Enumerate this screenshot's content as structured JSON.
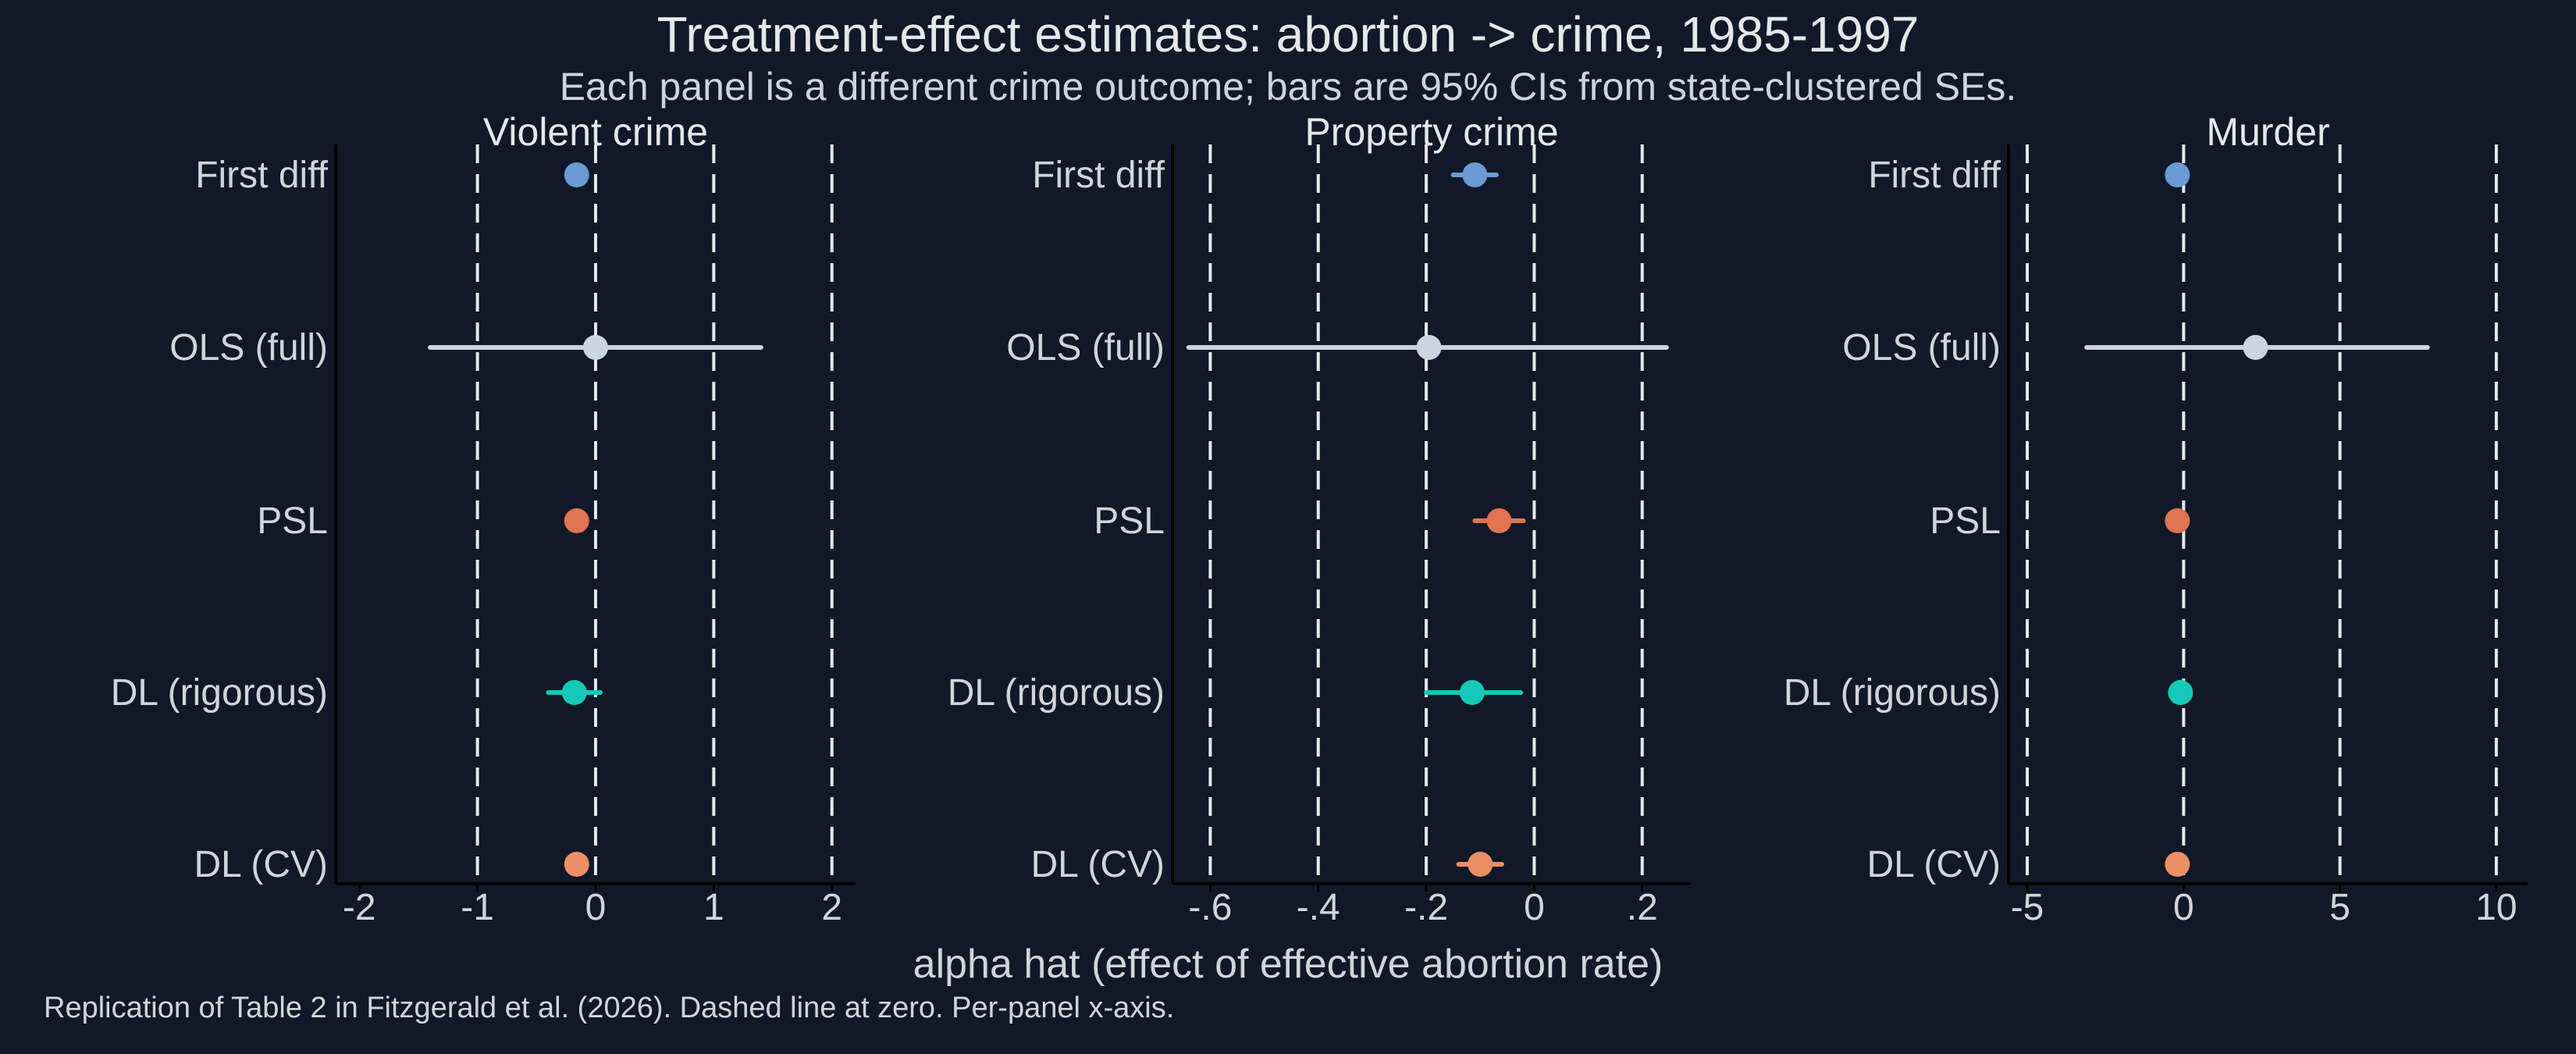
{
  "figure": {
    "title": "Treatment-effect estimates: abortion -> crime, 1985-1997",
    "subtitle": "Each panel is a different crime outcome; bars are 95% CIs from state-clustered SEs.",
    "xlabel": "alpha hat (effect of effective abortion rate)",
    "caption": "Replication of Table 2 in Fitzgerald et al. (2026). Dashed line at zero. Per-panel x-axis.",
    "colors": {
      "background": "#111827",
      "text": "#e5e7eb",
      "axis": "#000000",
      "dashed": "#e5e7eb",
      "methods": [
        "#6a9bd4",
        "#cbd5e1",
        "#e07350",
        "#14c9b7",
        "#eb9065"
      ]
    }
  },
  "chart_data": [
    {
      "type": "scatter",
      "title": "Violent crime",
      "categories": [
        "First diff",
        "OLS (full)",
        "PSL",
        "DL (rigorous)",
        "DL (CV)"
      ],
      "xlim": [
        -2.2,
        2.2
      ],
      "ticks": [
        -2,
        -1,
        0,
        1,
        2
      ],
      "tick_labels": [
        "-2",
        "-1",
        "0",
        "1",
        "2"
      ],
      "dashed_x": [
        -1,
        0,
        1,
        2
      ],
      "estimates": [
        -0.16,
        0.0,
        -0.16,
        -0.18,
        -0.16
      ],
      "ci_low": [
        -0.22,
        -1.4,
        -0.22,
        -0.4,
        -0.22
      ],
      "ci_high": [
        -0.1,
        1.4,
        -0.1,
        0.04,
        -0.1
      ]
    },
    {
      "type": "scatter",
      "title": "Property crime",
      "categories": [
        "First diff",
        "OLS (full)",
        "PSL",
        "DL (rigorous)",
        "DL (CV)"
      ],
      "xlim": [
        -0.67,
        0.29
      ],
      "ticks": [
        -0.6,
        -0.4,
        -0.2,
        0,
        0.2
      ],
      "tick_labels": [
        "-.6",
        "-.4",
        "-.2",
        "0",
        ".2"
      ],
      "dashed_x": [
        -0.6,
        -0.4,
        -0.2,
        0,
        0.2
      ],
      "estimates": [
        -0.11,
        -0.195,
        -0.065,
        -0.115,
        -0.1
      ],
      "ci_low": [
        -0.15,
        -0.64,
        -0.11,
        -0.2,
        -0.14
      ],
      "ci_high": [
        -0.07,
        0.245,
        -0.02,
        -0.025,
        -0.06
      ]
    },
    {
      "type": "scatter",
      "title": "Murder",
      "categories": [
        "First diff",
        "OLS (full)",
        "PSL",
        "DL (rigorous)",
        "DL (CV)"
      ],
      "xlim": [
        -5.6,
        11
      ],
      "ticks": [
        -5,
        0,
        5,
        10
      ],
      "tick_labels": [
        "-5",
        "0",
        "5",
        "10"
      ],
      "dashed_x": [
        -5,
        0,
        5,
        10
      ],
      "estimates": [
        -0.2,
        2.3,
        -0.2,
        -0.1,
        -0.2
      ],
      "ci_low": [
        -0.35,
        -3.1,
        -0.35,
        -0.3,
        -0.35
      ],
      "ci_high": [
        -0.05,
        7.8,
        -0.05,
        0.1,
        -0.05
      ]
    }
  ]
}
